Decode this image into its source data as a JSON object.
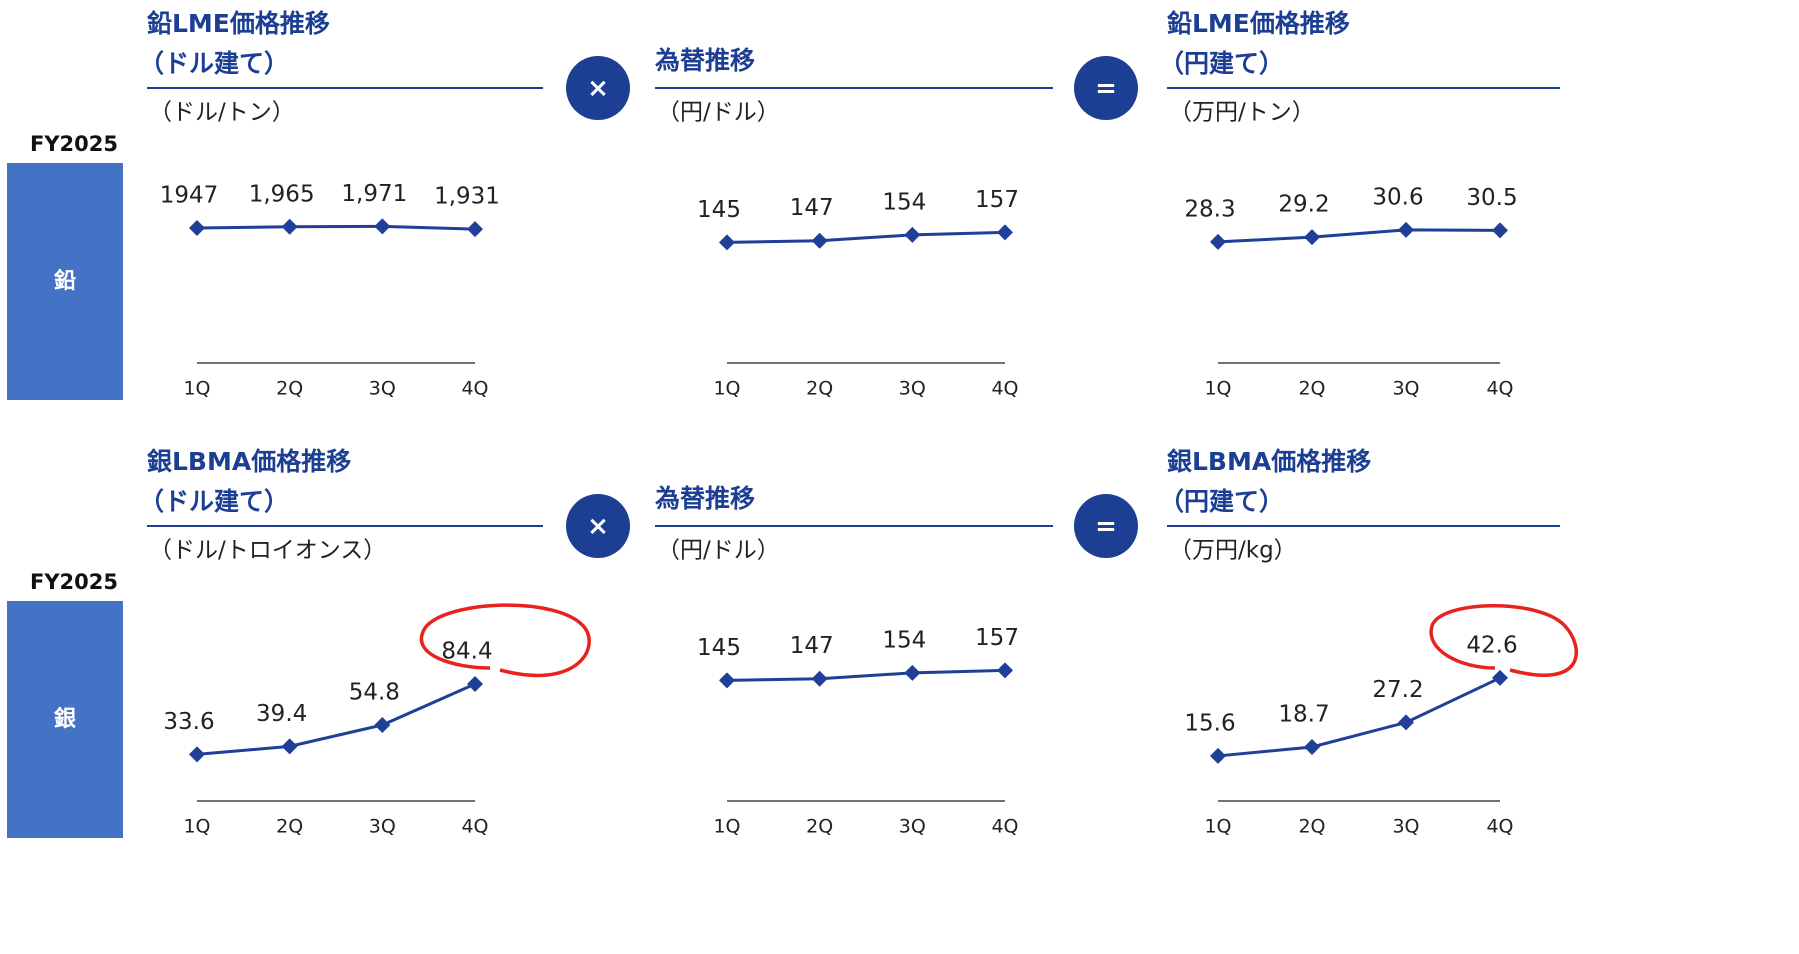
{
  "rows": [
    {
      "fiscal_year": "FY2025",
      "metal": "鉛",
      "operators": [
        "×",
        "="
      ]
    },
    {
      "fiscal_year": "FY2025",
      "metal": "銀",
      "operators": [
        "×",
        "="
      ]
    }
  ],
  "chart_data": [
    {
      "type": "line",
      "title": "鉛LME価格推移",
      "subtitle": "（ドル建て）",
      "unit": "（ドル/トン）",
      "categories": [
        "1Q",
        "2Q",
        "3Q",
        "4Q"
      ],
      "values": [
        1947,
        1965,
        1971,
        1931
      ],
      "value_labels": [
        "1947",
        "1,965",
        "1,971",
        "1,931"
      ],
      "color": "#1f3f99",
      "ylim": [
        0,
        3000
      ]
    },
    {
      "type": "line",
      "title": "為替推移",
      "unit": "（円/ドル）",
      "categories": [
        "1Q",
        "2Q",
        "3Q",
        "4Q"
      ],
      "values": [
        145,
        147,
        154,
        157
      ],
      "color": "#1f3f99",
      "ylim": [
        0,
        250
      ]
    },
    {
      "type": "line",
      "title": "鉛LME価格推移",
      "subtitle": "（円建て）",
      "unit": "（万円/トン）",
      "categories": [
        "1Q",
        "2Q",
        "3Q",
        "4Q"
      ],
      "values": [
        28.3,
        29.2,
        30.6,
        30.5
      ],
      "color": "#1f3f99",
      "ylim": [
        5,
        45
      ]
    },
    {
      "type": "line",
      "title": "銀LBMA価格推移",
      "subtitle": "（ドル建て）",
      "unit": "（ドル/トロイオンス）",
      "categories": [
        "1Q",
        "2Q",
        "3Q",
        "4Q"
      ],
      "values": [
        33.6,
        39.4,
        54.8,
        84.4
      ],
      "color": "#1f3f99",
      "ylim": [
        0,
        150
      ]
    },
    {
      "type": "line",
      "title": "為替推移",
      "unit": "（円/ドル）",
      "categories": [
        "1Q",
        "2Q",
        "3Q",
        "4Q"
      ],
      "values": [
        145,
        147,
        154,
        157
      ],
      "color": "#1f3f99",
      "ylim": [
        0,
        250
      ]
    },
    {
      "type": "line",
      "title": "銀LBMA価格推移",
      "subtitle": "（円建て）",
      "unit": "（万円/kg）",
      "categories": [
        "1Q",
        "2Q",
        "3Q",
        "4Q"
      ],
      "values": [
        15.6,
        18.7,
        27.2,
        42.6
      ],
      "color": "#1f3f99",
      "ylim": [
        0,
        72
      ]
    }
  ]
}
